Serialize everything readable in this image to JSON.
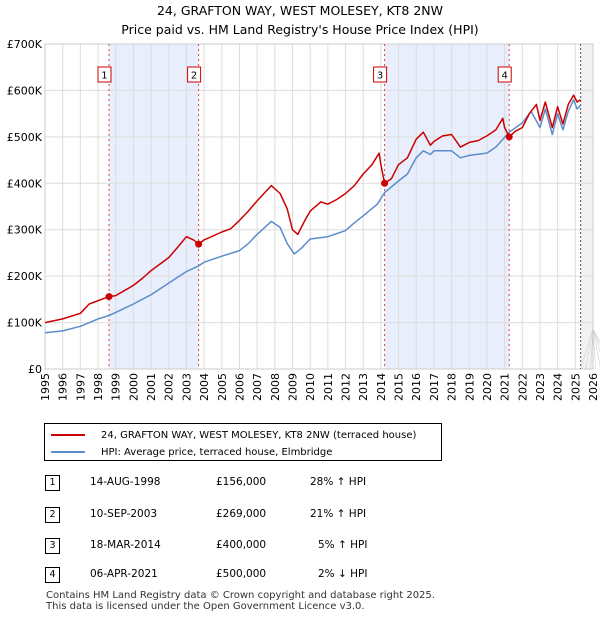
{
  "chart_data": {
    "type": "line",
    "title": "24, GRAFTON WAY, WEST MOLESEY, KT8 2NW",
    "subtitle": "Price paid vs. HM Land Registry's House Price Index (HPI)",
    "x_range": [
      1995,
      2026
    ],
    "ylim": [
      0,
      700000
    ],
    "y_ticks": [
      0,
      100000,
      200000,
      300000,
      400000,
      500000,
      600000,
      700000
    ],
    "y_tick_labels": [
      "£0",
      "£100K",
      "£200K",
      "£300K",
      "£400K",
      "£500K",
      "£600K",
      "£700K"
    ],
    "x_ticks": [
      1995,
      1996,
      1997,
      1998,
      1999,
      2000,
      2001,
      2002,
      2003,
      2004,
      2005,
      2006,
      2007,
      2008,
      2009,
      2010,
      2011,
      2012,
      2013,
      2014,
      2015,
      2016,
      2017,
      2018,
      2019,
      2020,
      2021,
      2022,
      2023,
      2024,
      2025,
      2026
    ],
    "x_tick_labels": [
      "1995",
      "1996",
      "1997",
      "1998",
      "1999",
      "2000",
      "2001",
      "2002",
      "2003",
      "2004",
      "2005",
      "2006",
      "2007",
      "2008",
      "2009",
      "2010",
      "2011",
      "2012",
      "2013",
      "2014",
      "2015",
      "2016",
      "2017",
      "2018",
      "2019",
      "2020",
      "2021",
      "2022",
      "2023",
      "2024",
      "2025",
      "2026"
    ],
    "grid": true,
    "shaded_regions": [
      [
        1998.62,
        2003.69
      ],
      [
        2014.21,
        2021.26
      ]
    ],
    "future_start": 2025.3,
    "series": [
      {
        "name": "24, GRAFTON WAY, WEST MOLESEY, KT8 2NW (terraced house)",
        "color": "#cc0000",
        "points": [
          [
            1995,
            100000
          ],
          [
            1996,
            108000
          ],
          [
            1997,
            120000
          ],
          [
            1997.5,
            140000
          ],
          [
            1998.62,
            156000
          ],
          [
            1999,
            158000
          ],
          [
            2000,
            180000
          ],
          [
            2000.5,
            195000
          ],
          [
            2001,
            212000
          ],
          [
            2002,
            240000
          ],
          [
            2002.5,
            262000
          ],
          [
            2003,
            285000
          ],
          [
            2003.4,
            278000
          ],
          [
            2003.69,
            269000
          ],
          [
            2004,
            278000
          ],
          [
            2005,
            295000
          ],
          [
            2005.5,
            302000
          ],
          [
            2006,
            320000
          ],
          [
            2006.5,
            340000
          ],
          [
            2007,
            362000
          ],
          [
            2007.8,
            395000
          ],
          [
            2008.3,
            378000
          ],
          [
            2008.7,
            345000
          ],
          [
            2009.0,
            300000
          ],
          [
            2009.3,
            290000
          ],
          [
            2009.7,
            320000
          ],
          [
            2010,
            340000
          ],
          [
            2010.6,
            360000
          ],
          [
            2011,
            355000
          ],
          [
            2011.5,
            365000
          ],
          [
            2012,
            378000
          ],
          [
            2012.5,
            395000
          ],
          [
            2013,
            420000
          ],
          [
            2013.5,
            440000
          ],
          [
            2013.9,
            465000
          ],
          [
            2014.0,
            440000
          ],
          [
            2014.21,
            400000
          ],
          [
            2014.6,
            410000
          ],
          [
            2015,
            440000
          ],
          [
            2015.5,
            455000
          ],
          [
            2016,
            495000
          ],
          [
            2016.4,
            510000
          ],
          [
            2016.8,
            482000
          ],
          [
            2017,
            490000
          ],
          [
            2017.5,
            502000
          ],
          [
            2018,
            505000
          ],
          [
            2018.5,
            478000
          ],
          [
            2019,
            488000
          ],
          [
            2019.5,
            492000
          ],
          [
            2020,
            502000
          ],
          [
            2020.5,
            515000
          ],
          [
            2020.9,
            540000
          ],
          [
            2021.0,
            520000
          ],
          [
            2021.26,
            500000
          ],
          [
            2021.6,
            512000
          ],
          [
            2022,
            520000
          ],
          [
            2022.4,
            550000
          ],
          [
            2022.8,
            570000
          ],
          [
            2023.0,
            535000
          ],
          [
            2023.3,
            575000
          ],
          [
            2023.7,
            520000
          ],
          [
            2024.0,
            565000
          ],
          [
            2024.3,
            528000
          ],
          [
            2024.6,
            570000
          ],
          [
            2024.9,
            590000
          ],
          [
            2025.1,
            575000
          ],
          [
            2025.3,
            580000
          ]
        ]
      },
      {
        "name": "HPI: Average price, terraced house, Elmbridge",
        "color": "#5b8ccc",
        "points": [
          [
            1995,
            78000
          ],
          [
            1996,
            82000
          ],
          [
            1997,
            92000
          ],
          [
            1998,
            108000
          ],
          [
            1998.62,
            115000
          ],
          [
            1999,
            122000
          ],
          [
            2000,
            140000
          ],
          [
            2001,
            160000
          ],
          [
            2002,
            185000
          ],
          [
            2003,
            210000
          ],
          [
            2003.69,
            222000
          ],
          [
            2004,
            230000
          ],
          [
            2005,
            243000
          ],
          [
            2006,
            255000
          ],
          [
            2006.5,
            270000
          ],
          [
            2007,
            290000
          ],
          [
            2007.8,
            318000
          ],
          [
            2008.3,
            305000
          ],
          [
            2008.7,
            270000
          ],
          [
            2009.1,
            248000
          ],
          [
            2009.5,
            260000
          ],
          [
            2010,
            280000
          ],
          [
            2011,
            285000
          ],
          [
            2012,
            298000
          ],
          [
            2012.5,
            315000
          ],
          [
            2013,
            330000
          ],
          [
            2013.8,
            355000
          ],
          [
            2014.21,
            380000
          ],
          [
            2015,
            405000
          ],
          [
            2015.5,
            420000
          ],
          [
            2016,
            455000
          ],
          [
            2016.4,
            470000
          ],
          [
            2016.8,
            462000
          ],
          [
            2017,
            470000
          ],
          [
            2018,
            470000
          ],
          [
            2018.5,
            455000
          ],
          [
            2019,
            460000
          ],
          [
            2020,
            465000
          ],
          [
            2020.5,
            478000
          ],
          [
            2021.26,
            510000
          ],
          [
            2022,
            530000
          ],
          [
            2022.5,
            555000
          ],
          [
            2023.0,
            520000
          ],
          [
            2023.3,
            560000
          ],
          [
            2023.7,
            505000
          ],
          [
            2024.0,
            550000
          ],
          [
            2024.3,
            515000
          ],
          [
            2024.6,
            555000
          ],
          [
            2024.9,
            580000
          ],
          [
            2025.1,
            560000
          ],
          [
            2025.3,
            568000
          ]
        ]
      }
    ],
    "sales": [
      {
        "label": "1",
        "year": 1998.62,
        "price": 156000
      },
      {
        "label": "2",
        "year": 2003.69,
        "price": 269000
      },
      {
        "label": "3",
        "year": 2014.21,
        "price": 400000
      },
      {
        "label": "4",
        "year": 2021.26,
        "price": 500000
      }
    ]
  },
  "legend": {
    "property_label": "24, GRAFTON WAY, WEST MOLESEY, KT8 2NW (terraced house)",
    "hpi_label": "HPI: Average price, terraced house, Elmbridge"
  },
  "transactions": [
    {
      "num": "1",
      "date": "14-AUG-1998",
      "price": "£156,000",
      "hpi": "28% ↑ HPI"
    },
    {
      "num": "2",
      "date": "10-SEP-2003",
      "price": "£269,000",
      "hpi": "21% ↑ HPI"
    },
    {
      "num": "3",
      "date": "18-MAR-2014",
      "price": "£400,000",
      "hpi": "5% ↑ HPI"
    },
    {
      "num": "4",
      "date": "06-APR-2021",
      "price": "£500,000",
      "hpi": "2% ↓ HPI"
    }
  ],
  "footer": {
    "line1": "Contains HM Land Registry data © Crown copyright and database right 2025.",
    "line2": "This data is licensed under the Open Government Licence v3.0."
  }
}
